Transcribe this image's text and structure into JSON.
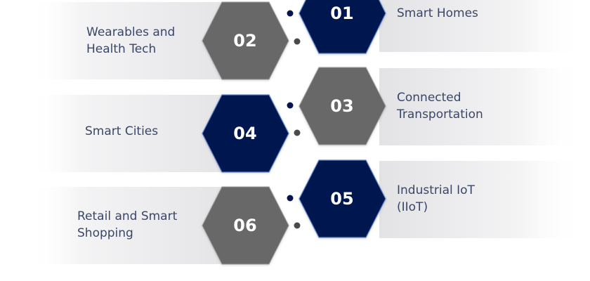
{
  "items": [
    {
      "number": "01",
      "label": "Smart Homes"
    },
    {
      "number": "02",
      "label": "Wearables and\nHealth Tech"
    },
    {
      "number": "03",
      "label": "Connected\nTransportation"
    },
    {
      "number": "04",
      "label": "Smart Cities"
    },
    {
      "number": "05",
      "label": "Industrial IoT\n(IIoT)"
    },
    {
      "number": "06",
      "label": "Retail and Smart\nShopping"
    }
  ],
  "colors": {
    "navy": "#061550",
    "gray": "#686868",
    "text": "#3a4668",
    "dot_navy": "#061550",
    "dot_gray": "#4a4a4a"
  }
}
